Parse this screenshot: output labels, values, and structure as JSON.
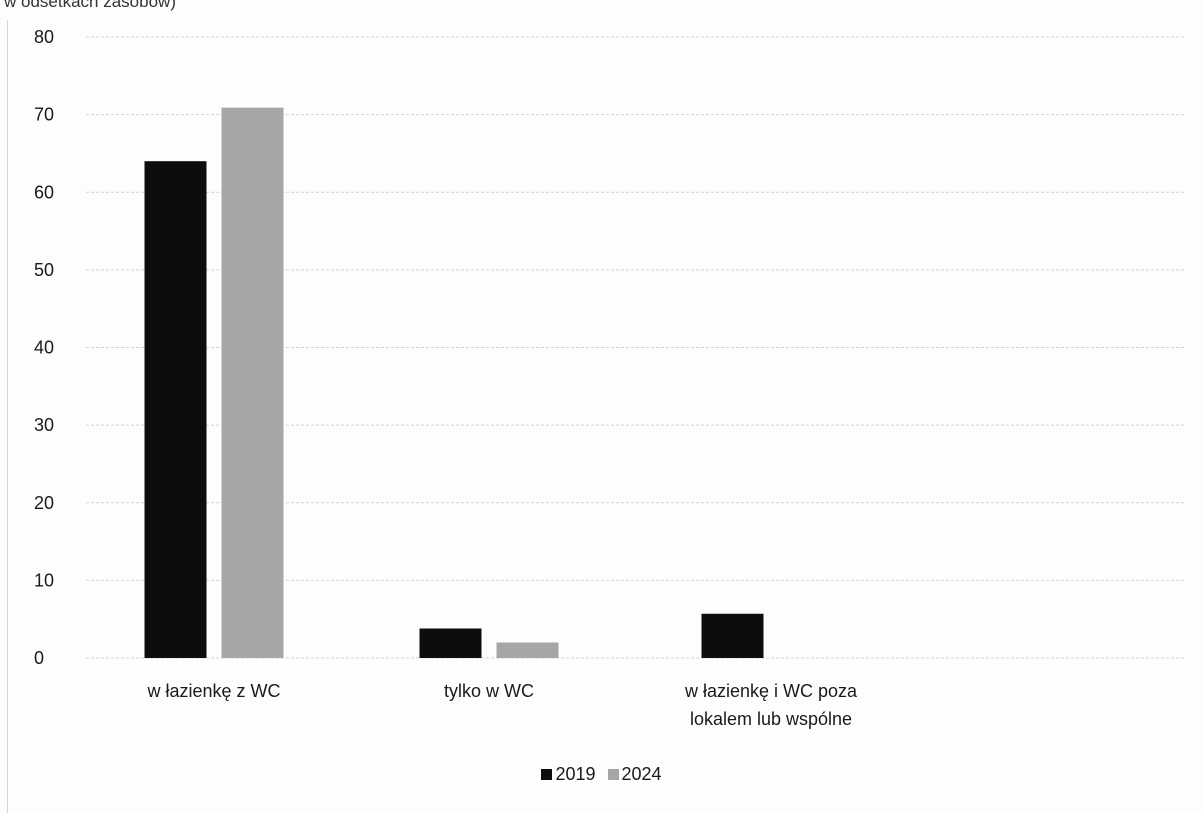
{
  "header": {
    "fragment": "w odsetkach zasobów)"
  },
  "chart_data": {
    "type": "bar",
    "title": "",
    "xlabel": "",
    "ylabel": "",
    "ylim": [
      0,
      80
    ],
    "yticks": [
      0,
      10,
      20,
      30,
      40,
      50,
      60,
      70,
      80
    ],
    "grid": true,
    "legend_position": "bottom",
    "categories": [
      [
        "w łazienkę z WC"
      ],
      [
        "tylko w WC"
      ],
      [
        "w łazienkę i WC poza",
        "lokalem lub wspólne"
      ]
    ],
    "series": [
      {
        "name": "2019",
        "color": "#0d0d0d",
        "values": [
          64,
          3.8,
          5.7
        ]
      },
      {
        "name": "2024",
        "color": "#a6a6a6",
        "values": [
          70.9,
          2,
          0
        ]
      }
    ]
  }
}
